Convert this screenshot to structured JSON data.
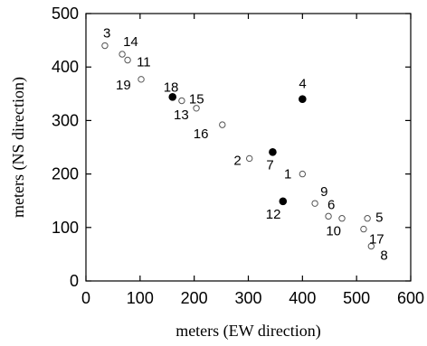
{
  "chart_data": {
    "type": "scatter",
    "title": "",
    "xlabel": "meters (EW direction)",
    "ylabel": "meters (NS direction)",
    "xlim": [
      0,
      600
    ],
    "ylim": [
      0,
      500
    ],
    "xticks": [
      "0",
      "100",
      "200",
      "300",
      "400",
      "500",
      "600"
    ],
    "yticks": [
      "0",
      "100",
      "200",
      "300",
      "400",
      "500"
    ],
    "grid": false,
    "legend": "none",
    "colors": {
      "axis": "#000000",
      "open_marker": "#555555",
      "filled_marker": "#000000"
    },
    "points": [
      {
        "id": "1",
        "x": 400,
        "y": 200,
        "filled": false
      },
      {
        "id": "2",
        "x": 302,
        "y": 229,
        "filled": false
      },
      {
        "id": "3",
        "x": 35,
        "y": 440,
        "filled": false
      },
      {
        "id": "4",
        "x": 400,
        "y": 340,
        "filled": true
      },
      {
        "id": "5",
        "x": 520,
        "y": 117,
        "filled": false
      },
      {
        "id": "6",
        "x": 448,
        "y": 121,
        "filled": false
      },
      {
        "id": "7",
        "x": 345,
        "y": 241,
        "filled": true
      },
      {
        "id": "8",
        "x": 527,
        "y": 65,
        "filled": false
      },
      {
        "id": "9",
        "x": 423,
        "y": 145,
        "filled": false
      },
      {
        "id": "10",
        "x": 473,
        "y": 117,
        "filled": false
      },
      {
        "id": "11",
        "x": 77,
        "y": 413,
        "filled": false
      },
      {
        "id": "12",
        "x": 364,
        "y": 149,
        "filled": true
      },
      {
        "id": "13",
        "x": 204,
        "y": 323,
        "filled": false
      },
      {
        "id": "14",
        "x": 67,
        "y": 424,
        "filled": false
      },
      {
        "id": "15",
        "x": 177,
        "y": 337,
        "filled": false
      },
      {
        "id": "16",
        "x": 252,
        "y": 292,
        "filled": false
      },
      {
        "id": "17",
        "x": 513,
        "y": 97,
        "filled": false
      },
      {
        "id": "18",
        "x": 160,
        "y": 344,
        "filled": true
      },
      {
        "id": "19",
        "x": 102,
        "y": 377,
        "filled": false
      }
    ]
  }
}
